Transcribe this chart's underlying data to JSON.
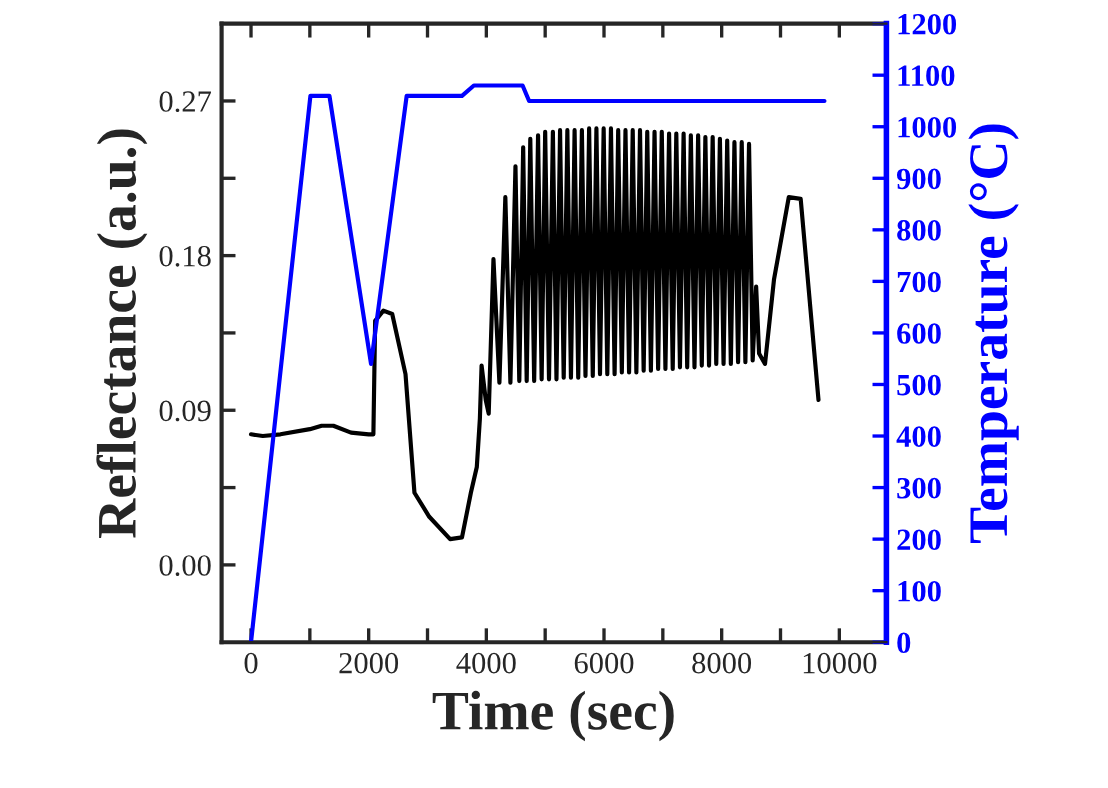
{
  "chart_data": {
    "type": "line",
    "xlabel": "Time (sec)",
    "ylabel": "Reflectance (a.u.)",
    "y2label": "Temperature (°C)",
    "xlim": [
      -500,
      10800
    ],
    "xticks": [
      0,
      {
        "value": 1000,
        "label": null
      },
      2000,
      {
        "value": 3000,
        "label": null
      },
      4000,
      {
        "value": 5000,
        "label": null
      },
      6000,
      {
        "value": 7000,
        "label": null
      },
      8000,
      {
        "value": 9000,
        "label": null
      },
      10000
    ],
    "ylim": [
      -0.045,
      0.315
    ],
    "yticks": [
      {
        "value": 0.0,
        "label": "0.00"
      },
      {
        "value": 0.045,
        "label": null
      },
      {
        "value": 0.09,
        "label": "0.09"
      },
      {
        "value": 0.135,
        "label": null
      },
      {
        "value": 0.18,
        "label": "0.18"
      },
      {
        "value": 0.225,
        "label": null
      },
      {
        "value": 0.27,
        "label": "0.27"
      }
    ],
    "y2lim": [
      0,
      1200
    ],
    "y2ticks": [
      0,
      100,
      200,
      300,
      400,
      500,
      600,
      700,
      800,
      900,
      1000,
      1100,
      1200
    ],
    "grid": false,
    "legend": false,
    "line_style": "solid",
    "marker": "none",
    "series": [
      {
        "color": "#000000",
        "x": [
          0,
          200,
          500,
          1000,
          1200,
          1400,
          1700,
          2000,
          2080,
          2110,
          2250,
          2400,
          2626,
          2778,
          3030,
          3384,
          3586,
          3737,
          3838,
          3890,
          3919,
          3990,
          4040,
          4121,
          4222,
          4323,
          4409,
          4495,
          4560,
          4626,
          4686,
          4747,
          4813,
          4879,
          4940,
          5000,
          5065,
          5131,
          5192,
          5253,
          5315,
          5377,
          5438,
          5500,
          5562,
          5624,
          5685,
          5747,
          5809,
          5871,
          5932,
          5994,
          6056,
          6118,
          6180,
          6241,
          6303,
          6365,
          6426,
          6488,
          6550,
          6612,
          6674,
          6735,
          6797,
          6859,
          6920,
          6982,
          7044,
          7106,
          7168,
          7229,
          7291,
          7353,
          7414,
          7476,
          7538,
          7600,
          7662,
          7723,
          7785,
          7847,
          7908,
          7970,
          8032,
          8094,
          8156,
          8217,
          8279,
          8341,
          8403,
          8465,
          8527,
          8586,
          8636,
          8737,
          8889,
          9141,
          9343,
          9444,
          9646
        ],
        "values": [
          0.076,
          0.075,
          0.076,
          0.079,
          0.081,
          0.081,
          0.077,
          0.076,
          0.076,
          0.142,
          0.148,
          0.146,
          0.111,
          0.042,
          0.028,
          0.015,
          0.016,
          0.042,
          0.057,
          0.085,
          0.116,
          0.096,
          0.088,
          0.178,
          0.106,
          0.214,
          0.106,
          0.232,
          0.107,
          0.243,
          0.107,
          0.248,
          0.107,
          0.25,
          0.108,
          0.252,
          0.108,
          0.252,
          0.108,
          0.253,
          0.109,
          0.253,
          0.109,
          0.253,
          0.109,
          0.253,
          0.11,
          0.254,
          0.11,
          0.254,
          0.111,
          0.254,
          0.111,
          0.254,
          0.111,
          0.253,
          0.112,
          0.253,
          0.112,
          0.253,
          0.112,
          0.253,
          0.113,
          0.252,
          0.113,
          0.252,
          0.114,
          0.252,
          0.114,
          0.251,
          0.114,
          0.251,
          0.115,
          0.251,
          0.115,
          0.25,
          0.115,
          0.25,
          0.116,
          0.249,
          0.116,
          0.249,
          0.117,
          0.248,
          0.117,
          0.247,
          0.117,
          0.246,
          0.118,
          0.246,
          0.118,
          0.245,
          0.119,
          0.162,
          0.123,
          0.117,
          0.166,
          0.214,
          0.213,
          0.174,
          0.096
        ]
      },
      {
        "color": "#0000ff",
        "axis": "y2",
        "x": [
          0,
          1010,
          1333,
          2040,
          2646,
          3586,
          3788,
          4616,
          4727,
          9747
        ],
        "values": [
          0,
          1060,
          1060,
          540,
          1060,
          1060,
          1080,
          1080,
          1050,
          1050
        ]
      }
    ]
  }
}
